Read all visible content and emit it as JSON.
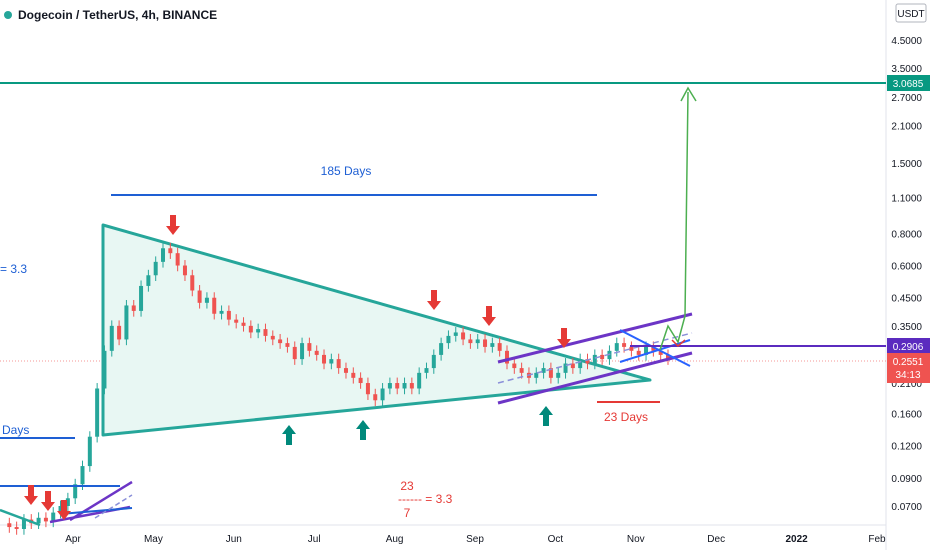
{
  "header": {
    "title": "Dogecoin / TetherUS, 4h, BINANCE"
  },
  "colors": {
    "up": "#26a69a",
    "down": "#ef5350",
    "triangle": "#26a69a",
    "triangle_fill": "#e8f7f3",
    "channel": "#6c35c6",
    "wedge": "#2962ff",
    "annotation_blue": "#1e5fd4",
    "annotation_red": "#e53935",
    "target_line": "#089981",
    "target_arrow": "#4caf50",
    "level_line": "#5b2bbf"
  },
  "chart_data": {
    "type": "line",
    "scale": "log",
    "ylim": [
      0.058,
      6.0
    ],
    "x_ticks": [
      "Apr",
      "May",
      "Jun",
      "Jul",
      "Aug",
      "Sep",
      "Oct",
      "Nov",
      "Dec",
      "2022",
      "Feb"
    ],
    "y_ticks": [
      "4.5000",
      "3.5000",
      "2.7000",
      "2.1000",
      "1.5000",
      "1.1000",
      "0.8000",
      "0.6000",
      "0.4500",
      "0.3500",
      "0.2100",
      "0.1600",
      "0.1200",
      "0.0900",
      "0.0700"
    ],
    "currency": "USDT",
    "price_labels": {
      "target": "3.0685",
      "level": "0.2906",
      "last": "0.2551",
      "countdown": "34:13"
    },
    "series": [
      {
        "values": [
          0.06,
          0.058,
          0.057,
          0.062,
          0.06,
          0.063,
          0.061,
          0.066,
          0.07,
          0.075,
          0.085,
          0.1,
          0.13,
          0.2,
          0.28,
          0.35,
          0.31,
          0.42,
          0.4,
          0.5,
          0.55,
          0.62,
          0.7,
          0.67,
          0.6,
          0.55,
          0.48,
          0.43,
          0.45,
          0.39,
          0.4,
          0.37,
          0.36,
          0.35,
          0.33,
          0.34,
          0.32,
          0.31,
          0.3,
          0.29,
          0.26,
          0.3,
          0.28,
          0.27,
          0.25,
          0.26,
          0.24,
          0.23,
          0.22,
          0.21,
          0.19,
          0.18,
          0.2,
          0.21,
          0.2,
          0.21,
          0.2,
          0.23,
          0.24,
          0.27,
          0.3,
          0.32,
          0.33,
          0.31,
          0.3,
          0.31,
          0.29,
          0.3,
          0.28,
          0.25,
          0.24,
          0.23,
          0.22,
          0.23,
          0.24,
          0.22,
          0.23,
          0.25,
          0.24,
          0.26,
          0.25,
          0.27,
          0.26,
          0.28,
          0.3,
          0.29,
          0.28,
          0.27,
          0.29,
          0.28,
          0.27,
          0.26
        ]
      }
    ],
    "annotations": {
      "days_185": "185 Days",
      "days_23": "23 Days",
      "left_ratio": "= 3.3",
      "left_days": "Days",
      "frac_num": "23",
      "frac_bar": "------ = 3.3",
      "frac_den": "7"
    }
  }
}
